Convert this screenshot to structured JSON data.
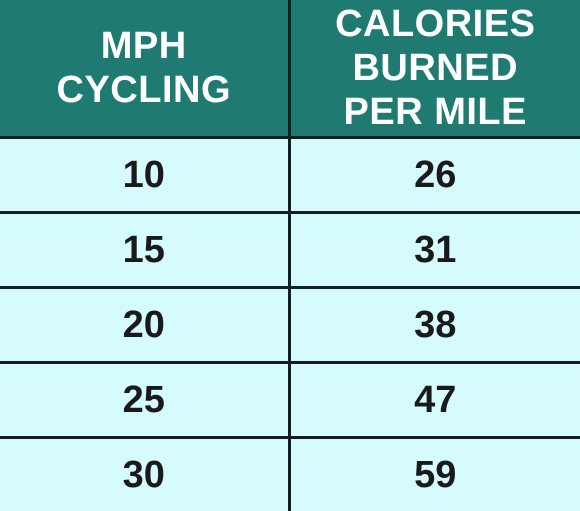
{
  "chart_data": {
    "type": "table",
    "columns": [
      "MPH\nCYCLING",
      "CALORIES\nBURNED\nPER MILE"
    ],
    "rows": [
      [
        "10",
        "26"
      ],
      [
        "15",
        "31"
      ],
      [
        "20",
        "38"
      ],
      [
        "25",
        "47"
      ],
      [
        "30",
        "59"
      ]
    ]
  },
  "colors": {
    "header_bg": "#1f7a72",
    "header_text": "#ffffff",
    "cell_bg": "#d6fbfd",
    "grid": "#14201f"
  }
}
